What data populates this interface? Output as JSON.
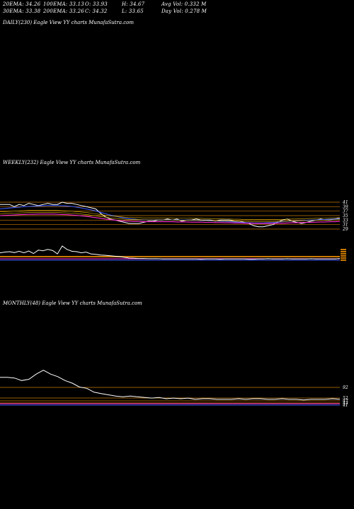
{
  "header": {
    "row1": [
      "20EMA: 34.26",
      "100EMA: 33.13",
      "O: 33.93",
      "H: 34.67",
      "Avg Vol: 0.332  M"
    ],
    "row2": [
      "30EMA: 33.38",
      "200EMA: 33.26",
      "C: 34.32",
      "L: 33.65",
      "Day Vol: 0.278  M"
    ]
  },
  "panels": {
    "daily": "DAILY(230) Eagle   View  YY charts MunafaSutra.com",
    "weekly": "WEEKLY(232) Eagle   View  YY charts MunafaSutra.com",
    "monthly": "MONTHLY(48) Eagle   View  YY charts MunafaSutra.com"
  },
  "colors": {
    "background": "#000000",
    "price": "#ffffff",
    "level": "#cc7a00",
    "ema_short": "#3b5bff",
    "ema_long": "#ff2fd0",
    "ema_mid": "#f0c000"
  },
  "chart_data": [
    {
      "type": "line",
      "panel": "weekly",
      "y_ticks": [
        "41",
        "39",
        "37",
        "35",
        "33",
        "31",
        "29"
      ],
      "series": [
        {
          "values": [
            40,
            40,
            40,
            39,
            40,
            39.5,
            40.5,
            40,
            39.5,
            40,
            40.5,
            40,
            40,
            41,
            40.5,
            40.5,
            40,
            39.5,
            39,
            38.5,
            38,
            36,
            34.5,
            33.5,
            33,
            32.5,
            32,
            31.5,
            31.5,
            31.5,
            32,
            32.5,
            32.5,
            33,
            33,
            33.5,
            33,
            33.5,
            32.5,
            33,
            33,
            33.5,
            33,
            33,
            33,
            32.5,
            33,
            33,
            33,
            32.5,
            32.5,
            32,
            31.5,
            30.5,
            30,
            30,
            30.5,
            31,
            32,
            33,
            33.5,
            32.5,
            32,
            31.5,
            32,
            32.5,
            33,
            33.5,
            33,
            33,
            33.5,
            34
          ]
        },
        {
          "values": [
            38,
            38.2,
            38.4,
            38.6,
            38.8,
            39,
            39.1,
            39.2,
            39.3,
            39.4,
            39.5,
            39.5,
            39.5,
            39.4,
            39.3,
            39.1,
            38.8,
            38.4,
            38,
            37.6,
            37.1,
            36.5,
            35.9,
            35.3,
            34.8,
            34.3,
            33.9,
            33.6,
            33.4,
            33.2,
            33.1,
            33.1,
            33.1,
            33.1,
            33.1,
            33.1,
            33.1,
            33,
            33,
            33,
            32.9,
            32.9,
            32.8,
            32.8,
            32.7,
            32.6,
            32.5,
            32.4,
            32.3,
            32.2,
            32,
            31.9,
            31.8,
            31.7,
            31.7,
            31.7,
            31.8,
            31.9,
            32.1,
            32.3,
            32.5,
            32.6,
            32.7,
            32.8,
            32.9,
            33,
            33.1,
            33.2,
            33.3,
            33.4,
            33.5,
            33.6
          ]
        },
        {
          "values": [
            35,
            35.1,
            35.2,
            35.3,
            35.4,
            35.5,
            35.6,
            35.6,
            35.7,
            35.7,
            35.7,
            35.7,
            35.6,
            35.5,
            35.4,
            35.3,
            35.1,
            34.9,
            34.7,
            34.4,
            34.1,
            33.8,
            33.5,
            33.2,
            33,
            32.8,
            32.6,
            32.5,
            32.4,
            32.4,
            32.3,
            32.3,
            32.3,
            32.3,
            32.3,
            32.3,
            32.3,
            32.2,
            32.2,
            32.2,
            32.1,
            32.1,
            32.1,
            32,
            32,
            31.9,
            31.9,
            31.8,
            31.8,
            31.7,
            31.7,
            31.6,
            31.6,
            31.5,
            31.5,
            31.5,
            31.5,
            31.5,
            31.6,
            31.6,
            31.7,
            31.8,
            31.8,
            31.9,
            32,
            32,
            32.1,
            32.2,
            32.2,
            32.3,
            32.3,
            32.4
          ]
        }
      ]
    },
    {
      "type": "line",
      "panel": "weekly-volume",
      "series": [
        {
          "values": [
            55,
            52,
            50,
            54,
            48,
            55,
            47,
            58,
            43,
            46,
            40,
            45,
            60,
            25,
            40,
            48,
            50,
            55,
            52,
            60,
            62,
            65,
            66,
            68,
            70,
            72,
            75,
            78,
            79,
            80,
            80,
            81,
            81,
            81,
            82,
            82,
            82,
            82,
            82,
            82,
            82,
            82,
            83,
            82,
            82,
            82,
            83,
            82,
            82,
            82,
            82,
            82,
            83,
            83,
            82,
            82,
            81,
            82,
            82,
            82,
            81,
            82,
            82,
            82,
            82,
            81,
            82,
            82,
            82,
            82,
            82,
            80
          ]
        }
      ]
    },
    {
      "type": "line",
      "panel": "monthly",
      "y_ticks": [
        "92",
        "52",
        "47",
        "43",
        "41"
      ],
      "series": [
        {
          "values": [
            85,
            85,
            84,
            80,
            82,
            90,
            96,
            90,
            86,
            80,
            76,
            70,
            68,
            62,
            60,
            58,
            56,
            55,
            56,
            55,
            54,
            53,
            54,
            52,
            53,
            52,
            53,
            51,
            52,
            52,
            51,
            51,
            51,
            52,
            51,
            52,
            52,
            51,
            51,
            52,
            51,
            51,
            50,
            51,
            51,
            51,
            52,
            51
          ]
        }
      ]
    }
  ]
}
